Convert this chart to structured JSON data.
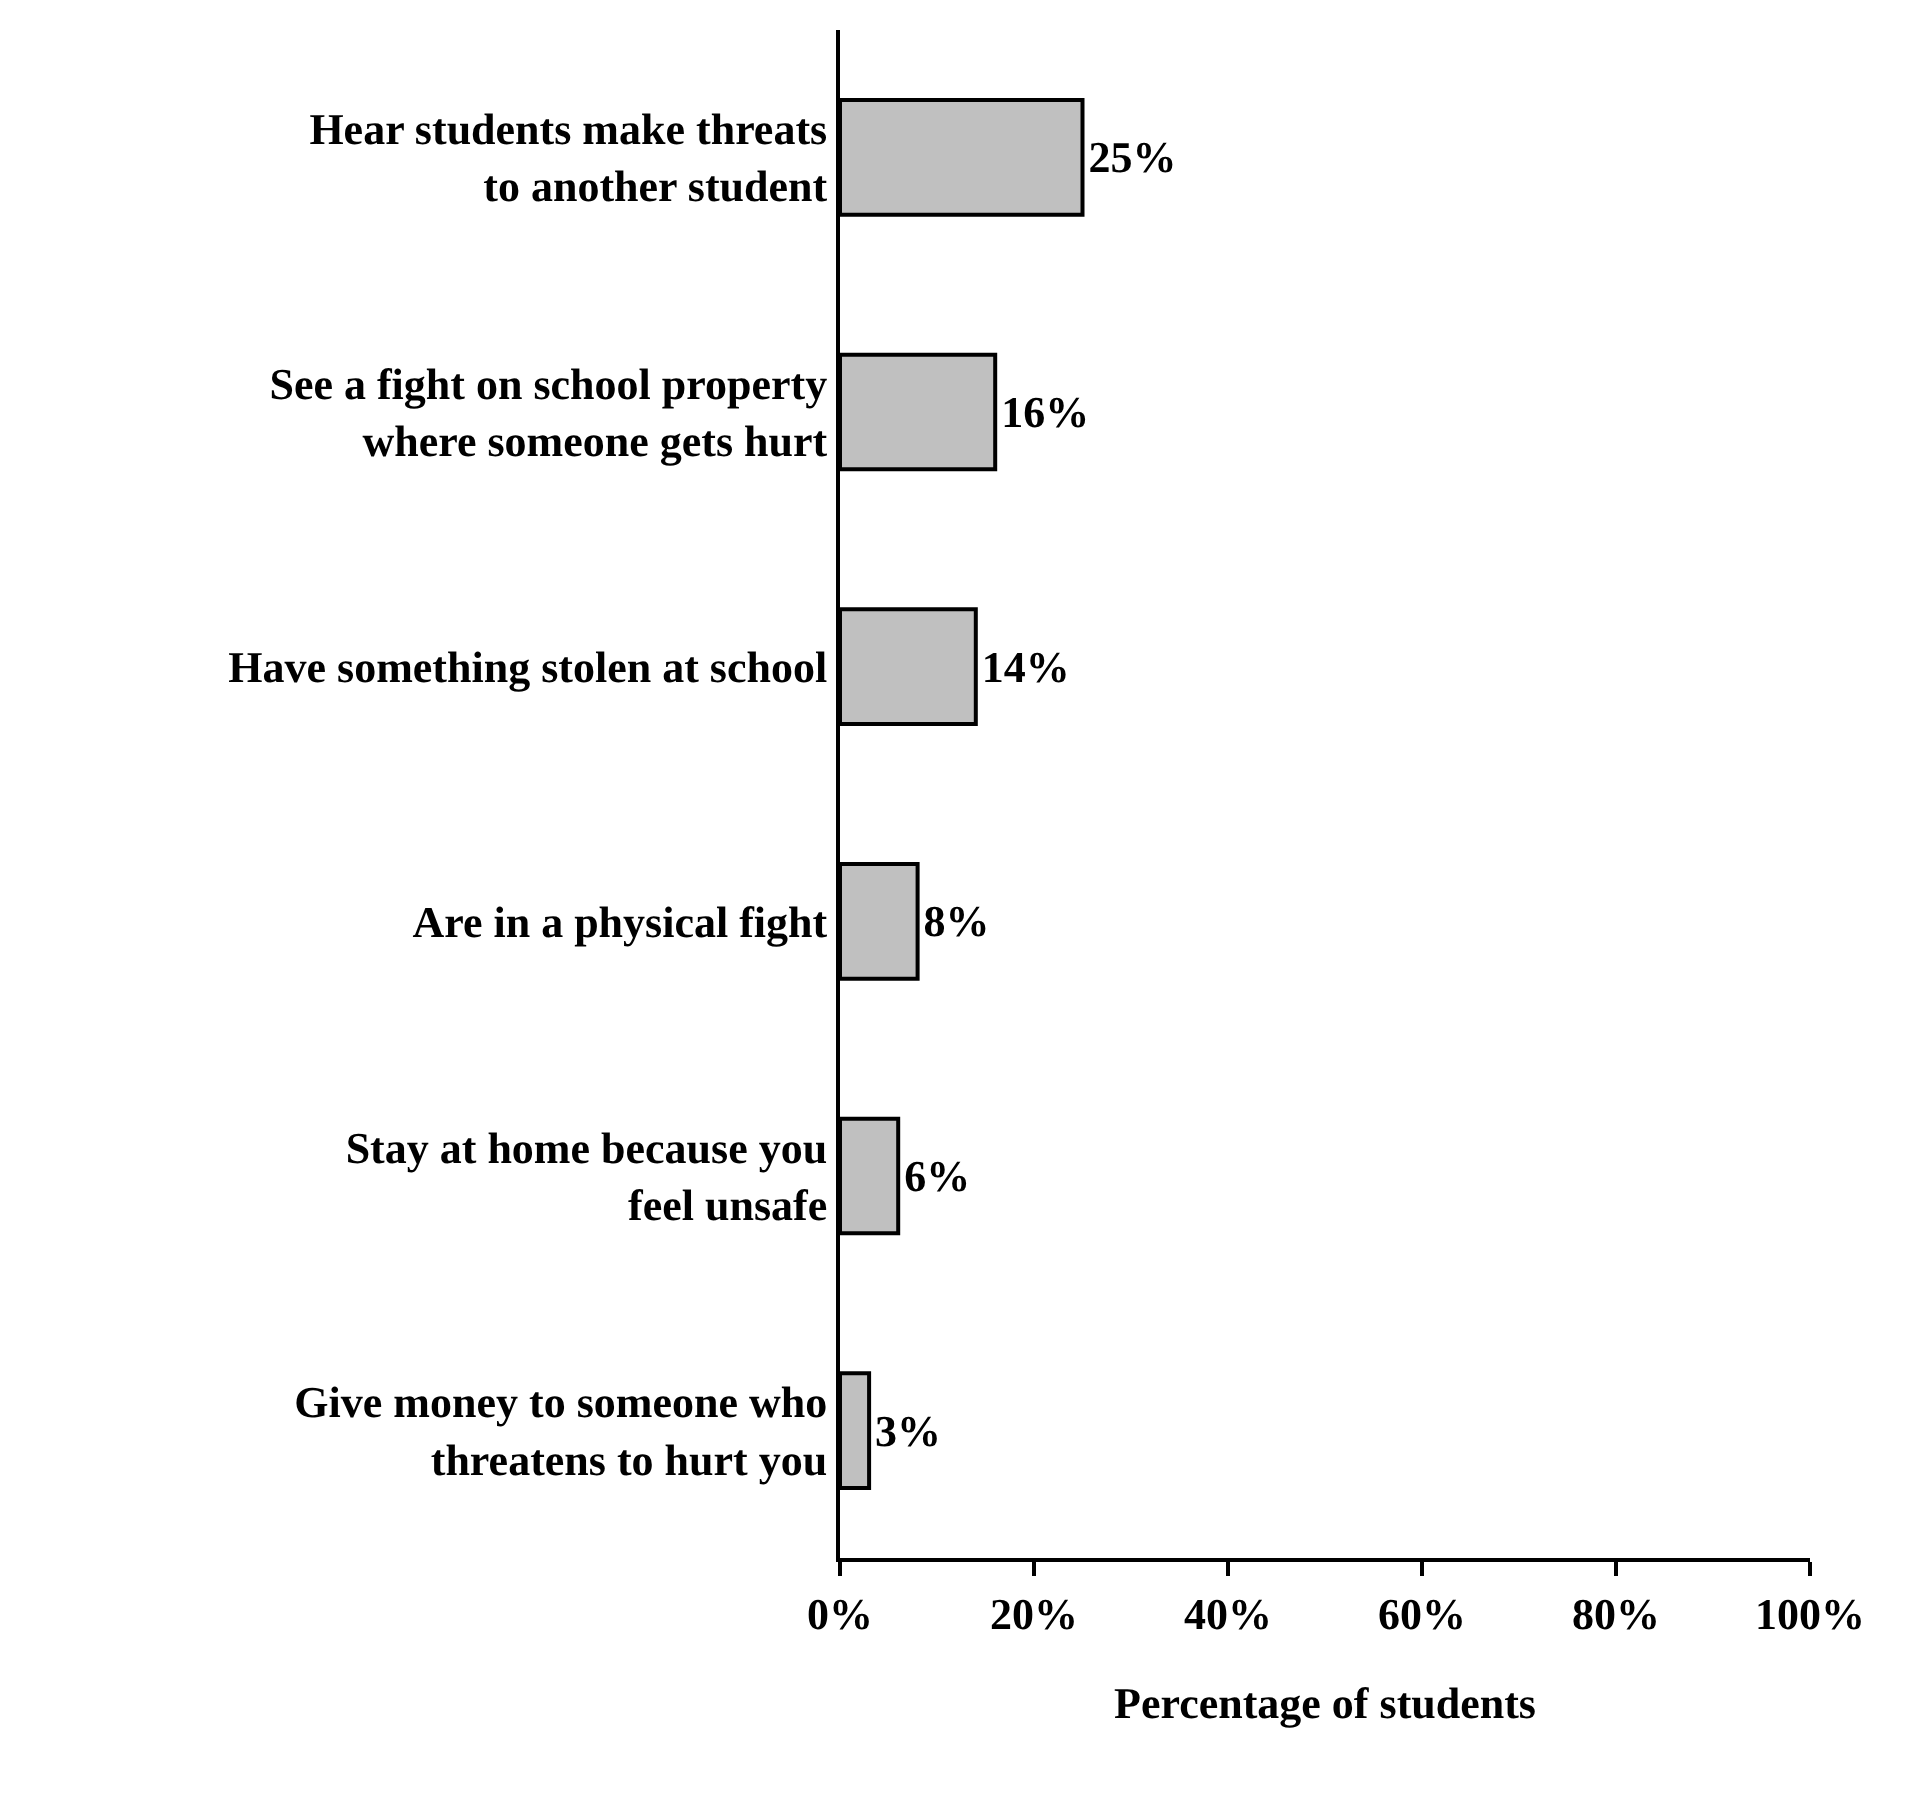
{
  "chart_data": {
    "type": "bar",
    "orientation": "horizontal",
    "xlabel": "Percentage of students",
    "categories": [
      "Hear students make threats\nto another student",
      "See a fight on school property\nwhere someone gets hurt",
      "Have something stolen at school",
      "Are in a physical fight",
      "Stay at home because you\nfeel unsafe",
      "Give money to someone who\nthreatens to hurt you"
    ],
    "values": [
      25,
      16,
      14,
      8,
      6,
      3
    ],
    "value_labels": [
      "25%",
      "16%",
      "14%",
      "8%",
      "6%",
      "3%"
    ],
    "color": "#c0c0c0",
    "xlim": [
      0,
      100
    ],
    "xticks": [
      {
        "value": 0,
        "label": "0%"
      },
      {
        "value": 20,
        "label": "20%"
      },
      {
        "value": 40,
        "label": "40%"
      },
      {
        "value": 60,
        "label": "60%"
      },
      {
        "value": 80,
        "label": "80%"
      },
      {
        "value": 100,
        "label": "100%"
      }
    ],
    "grid": false,
    "legend": false
  }
}
